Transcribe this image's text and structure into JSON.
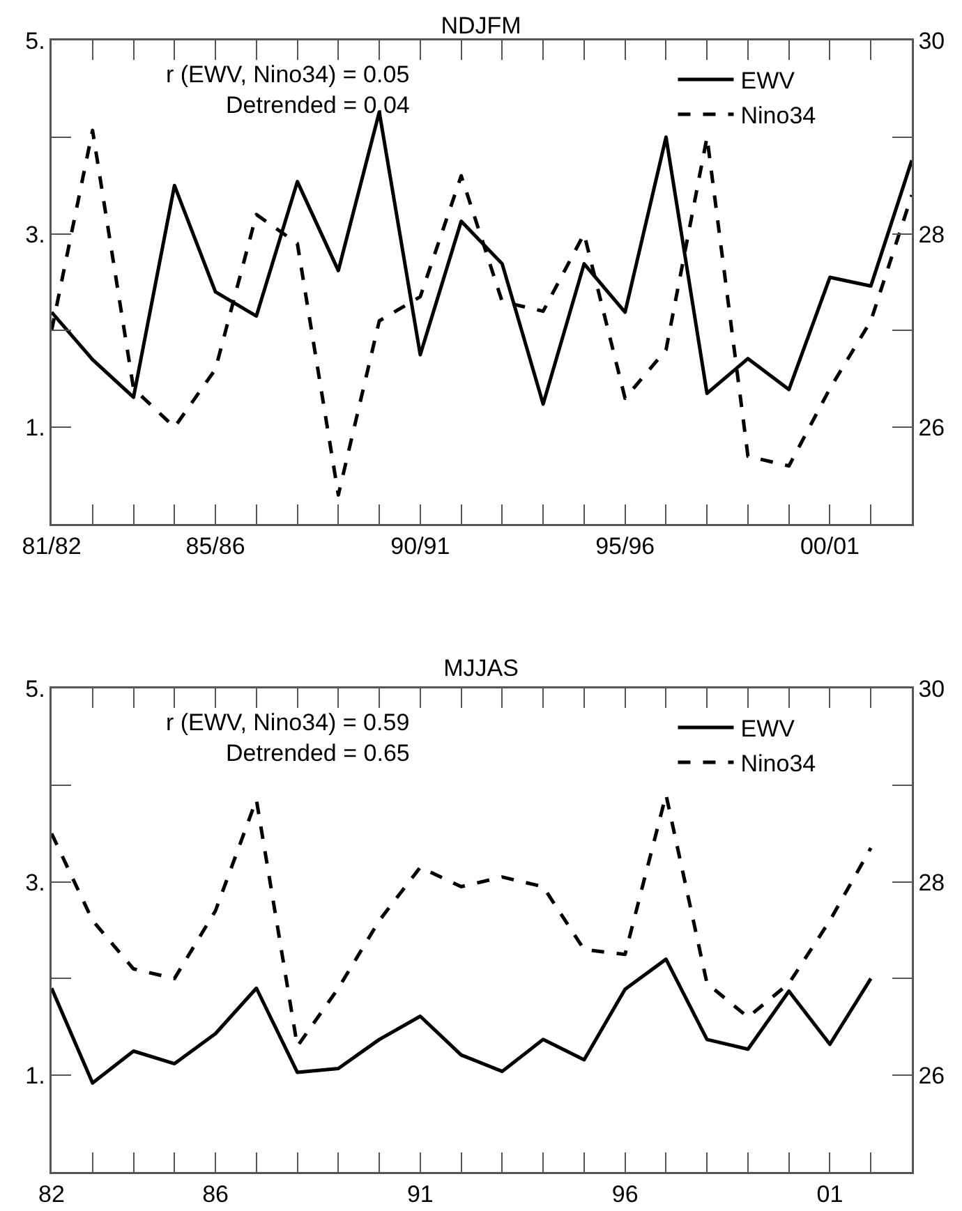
{
  "chart_data": [
    {
      "type": "line",
      "title": "NDJFM",
      "categories": [
        "81/82",
        null,
        null,
        null,
        "85/86",
        null,
        null,
        null,
        null,
        "90/91",
        null,
        null,
        null,
        null,
        "95/96",
        null,
        null,
        null,
        null,
        "00/01",
        null,
        null
      ],
      "ylim": [
        0,
        5
      ],
      "yticks": [
        {
          "value": 1,
          "label": "1."
        },
        {
          "value": 2,
          "label": null
        },
        {
          "value": 3,
          "label": "3."
        },
        {
          "value": 4,
          "label": null
        },
        {
          "value": 5,
          "label": "5."
        }
      ],
      "y2lim": [
        25,
        30
      ],
      "y2ticks": [
        26,
        28,
        30
      ],
      "grid": false,
      "legend": "top right",
      "annotations": [
        "r (EWV, Nino34) = 0.05",
        "Detrended = 0.04"
      ],
      "series": [
        {
          "name": "EWV",
          "color": "#000000",
          "line_style": "solid",
          "values": [
            2.19,
            1.7,
            1.31,
            3.5,
            2.4,
            2.15,
            3.54,
            2.62,
            4.26,
            1.75,
            3.13,
            2.69,
            1.24,
            2.69,
            2.19,
            4.0,
            1.35,
            1.71,
            1.39,
            2.55,
            2.46,
            3.76
          ]
        },
        {
          "name": "Nino34",
          "color": "#000000",
          "line_style": "dashed",
          "axis": "y2",
          "values": [
            27.0,
            29.07,
            26.4,
            26.0,
            26.6,
            28.2,
            27.9,
            25.3,
            27.1,
            27.35,
            28.6,
            27.3,
            27.2,
            28.0,
            26.3,
            26.8,
            29.0,
            25.7,
            25.6,
            26.4,
            27.1,
            28.4
          ]
        }
      ]
    },
    {
      "type": "line",
      "title": "MJJAS",
      "x": [
        1982,
        1983,
        1984,
        1985,
        1986,
        1987,
        1988,
        1989,
        1990,
        1991,
        1992,
        1993,
        1994,
        1995,
        1996,
        1997,
        1998,
        1999,
        2000,
        2001,
        2002
      ],
      "xlim": [
        1982,
        2003
      ],
      "xticks": [
        {
          "value": 1982,
          "label": "82"
        },
        {
          "value": 1983,
          "label": null
        },
        {
          "value": 1984,
          "label": null
        },
        {
          "value": 1985,
          "label": null
        },
        {
          "value": 1986,
          "label": "86"
        },
        {
          "value": 1987,
          "label": null
        },
        {
          "value": 1988,
          "label": null
        },
        {
          "value": 1989,
          "label": null
        },
        {
          "value": 1990,
          "label": null
        },
        {
          "value": 1991,
          "label": "91"
        },
        {
          "value": 1992,
          "label": null
        },
        {
          "value": 1993,
          "label": null
        },
        {
          "value": 1994,
          "label": null
        },
        {
          "value": 1995,
          "label": null
        },
        {
          "value": 1996,
          "label": "96"
        },
        {
          "value": 1997,
          "label": null
        },
        {
          "value": 1998,
          "label": null
        },
        {
          "value": 1999,
          "label": null
        },
        {
          "value": 2000,
          "label": null
        },
        {
          "value": 2001,
          "label": "01"
        },
        {
          "value": 2002,
          "label": null
        }
      ],
      "ylim": [
        0,
        5
      ],
      "yticks": [
        {
          "value": 1,
          "label": "1."
        },
        {
          "value": 2,
          "label": null
        },
        {
          "value": 3,
          "label": "3."
        },
        {
          "value": 4,
          "label": null
        },
        {
          "value": 5,
          "label": "5."
        }
      ],
      "y2lim": [
        25,
        30
      ],
      "y2ticks": [
        26,
        28,
        30
      ],
      "grid": false,
      "legend": "top right",
      "annotations": [
        "r (EWV, Nino34) = 0.59",
        "Detrended = 0.65"
      ],
      "series": [
        {
          "name": "EWV",
          "color": "#000000",
          "line_style": "solid",
          "values": [
            1.9,
            0.92,
            1.25,
            1.12,
            1.43,
            1.9,
            1.03,
            1.07,
            1.37,
            1.61,
            1.21,
            1.04,
            1.37,
            1.16,
            1.89,
            2.2,
            1.37,
            1.27,
            1.87,
            1.32,
            2.0
          ]
        },
        {
          "name": "Nino34",
          "color": "#000000",
          "line_style": "dashed",
          "axis": "y2",
          "values": [
            28.5,
            27.6,
            27.1,
            27.0,
            27.7,
            28.85,
            26.3,
            26.9,
            27.6,
            28.15,
            27.95,
            28.05,
            27.95,
            27.3,
            27.25,
            28.9,
            26.95,
            26.6,
            26.95,
            27.6,
            28.35
          ]
        }
      ]
    }
  ]
}
